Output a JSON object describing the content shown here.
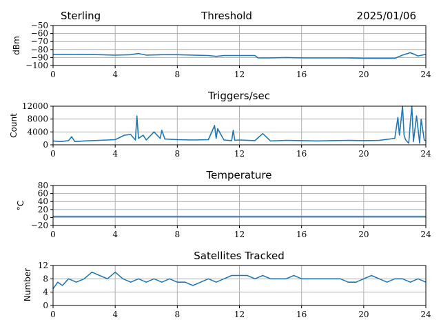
{
  "header": {
    "station": "Sterling",
    "date": "2025/01/06"
  },
  "colors": {
    "series": "#1f77b4",
    "grid": "#b0b0b0"
  },
  "chart_data": [
    {
      "type": "line",
      "title": "Threshold",
      "xlabel": "",
      "ylabel": "dBm",
      "xlim": [
        0,
        24
      ],
      "ylim": [
        -100,
        -50
      ],
      "x_ticks": [
        0,
        4,
        8,
        12,
        16,
        20,
        24
      ],
      "y_ticks": [
        -100,
        -90,
        -80,
        -70,
        -60,
        -50
      ],
      "y_tick_labels": [
        "−100",
        "−90",
        "−80",
        "−70",
        "−60",
        "−50"
      ],
      "grid": true,
      "series": [
        {
          "x": [
            0,
            1,
            2,
            3,
            4,
            5,
            5.5,
            6,
            7,
            8,
            9,
            10,
            10.5,
            11,
            12,
            13,
            13.2,
            14,
            15,
            16,
            17,
            18,
            19,
            20,
            21,
            22,
            22.5,
            23,
            23.5,
            24
          ],
          "values": [
            -86,
            -86,
            -86,
            -86.5,
            -87,
            -86.5,
            -85,
            -87,
            -86.5,
            -86.5,
            -87,
            -87.5,
            -88.5,
            -87.5,
            -87.5,
            -87.5,
            -90.5,
            -90.5,
            -90,
            -90.5,
            -90.5,
            -90.5,
            -90.5,
            -91,
            -91,
            -91,
            -87,
            -84,
            -88,
            -86
          ]
        }
      ]
    },
    {
      "type": "line",
      "title": "Triggers/sec",
      "xlabel": "",
      "ylabel": "Count",
      "xlim": [
        0,
        24
      ],
      "ylim": [
        0,
        12000
      ],
      "x_ticks": [
        0,
        4,
        8,
        12,
        16,
        20,
        24
      ],
      "y_ticks": [
        0,
        4000,
        8000,
        12000
      ],
      "y_tick_labels": [
        "0",
        "4000",
        "8000",
        "12000"
      ],
      "grid": true,
      "series": [
        {
          "x": [
            0,
            0.5,
            1,
            1.2,
            1.4,
            2,
            3,
            4,
            4.6,
            5,
            5.3,
            5.4,
            5.5,
            5.8,
            6,
            6.5,
            6.9,
            7,
            7.2,
            8,
            9,
            10,
            10.4,
            10.5,
            10.6,
            11,
            11.5,
            11.6,
            11.7,
            12,
            13,
            13.5,
            14,
            15,
            16,
            17,
            18,
            19,
            20,
            21,
            22,
            22.2,
            22.3,
            22.5,
            22.6,
            22.7,
            22.9,
            23,
            23.1,
            23.2,
            23.4,
            23.6,
            23.7,
            23.9,
            24
          ],
          "values": [
            1200,
            1000,
            1300,
            2500,
            1000,
            1200,
            1400,
            1600,
            3000,
            3200,
            1500,
            9000,
            2000,
            3000,
            1500,
            4000,
            2000,
            4500,
            1800,
            1600,
            1500,
            1600,
            6000,
            2000,
            5000,
            1500,
            1300,
            4500,
            1400,
            1500,
            1300,
            3500,
            1200,
            1400,
            1300,
            1200,
            1300,
            1400,
            1300,
            1400,
            2000,
            8500,
            3000,
            12000,
            3000,
            1500,
            500,
            7000,
            12000,
            1000,
            9000,
            500,
            8000,
            1500,
            1200
          ]
        }
      ]
    },
    {
      "type": "line",
      "title": "Temperature",
      "xlabel": "",
      "ylabel": "°C",
      "xlim": [
        0,
        24
      ],
      "ylim": [
        -20,
        80
      ],
      "x_ticks": [
        0,
        4,
        8,
        12,
        16,
        20,
        24
      ],
      "y_ticks": [
        -20,
        0,
        20,
        40,
        60,
        80
      ],
      "y_tick_labels": [
        "−20",
        "0",
        "20",
        "40",
        "60",
        "80"
      ],
      "grid": true,
      "series": [
        {
          "x": [
            0,
            24
          ],
          "values": [
            3,
            3
          ]
        }
      ]
    },
    {
      "type": "line",
      "title": "Satellites Tracked",
      "xlabel": "",
      "ylabel": "Number",
      "xlim": [
        0,
        24
      ],
      "ylim": [
        0,
        12
      ],
      "x_ticks": [
        0,
        4,
        8,
        12,
        16,
        20,
        24
      ],
      "y_ticks": [
        0,
        4,
        8,
        12
      ],
      "y_tick_labels": [
        "0",
        "4",
        "8",
        "12"
      ],
      "grid": true,
      "series": [
        {
          "x": [
            0,
            0.3,
            0.6,
            1,
            1.5,
            2,
            2.5,
            3,
            3.5,
            4,
            4.5,
            5,
            5.5,
            6,
            6.5,
            7,
            7.5,
            8,
            8.5,
            9,
            9.5,
            10,
            10.5,
            11,
            11.5,
            12,
            12.5,
            13,
            13.5,
            14,
            14.5,
            15,
            15.5,
            16,
            16.5,
            17,
            17.5,
            18,
            18.5,
            19,
            19.5,
            20,
            20.5,
            21,
            21.5,
            22,
            22.5,
            23,
            23.5,
            24
          ],
          "values": [
            5,
            7,
            6,
            8,
            7,
            8,
            10,
            9,
            8,
            10,
            8,
            7,
            8,
            7,
            8,
            7,
            8,
            7,
            7,
            6,
            7,
            8,
            7,
            8,
            9,
            9,
            9,
            8,
            9,
            8,
            8,
            8,
            9,
            8,
            8,
            8,
            8,
            8,
            8,
            7,
            7,
            8,
            9,
            8,
            7,
            8,
            8,
            7,
            8,
            7
          ]
        }
      ]
    }
  ]
}
